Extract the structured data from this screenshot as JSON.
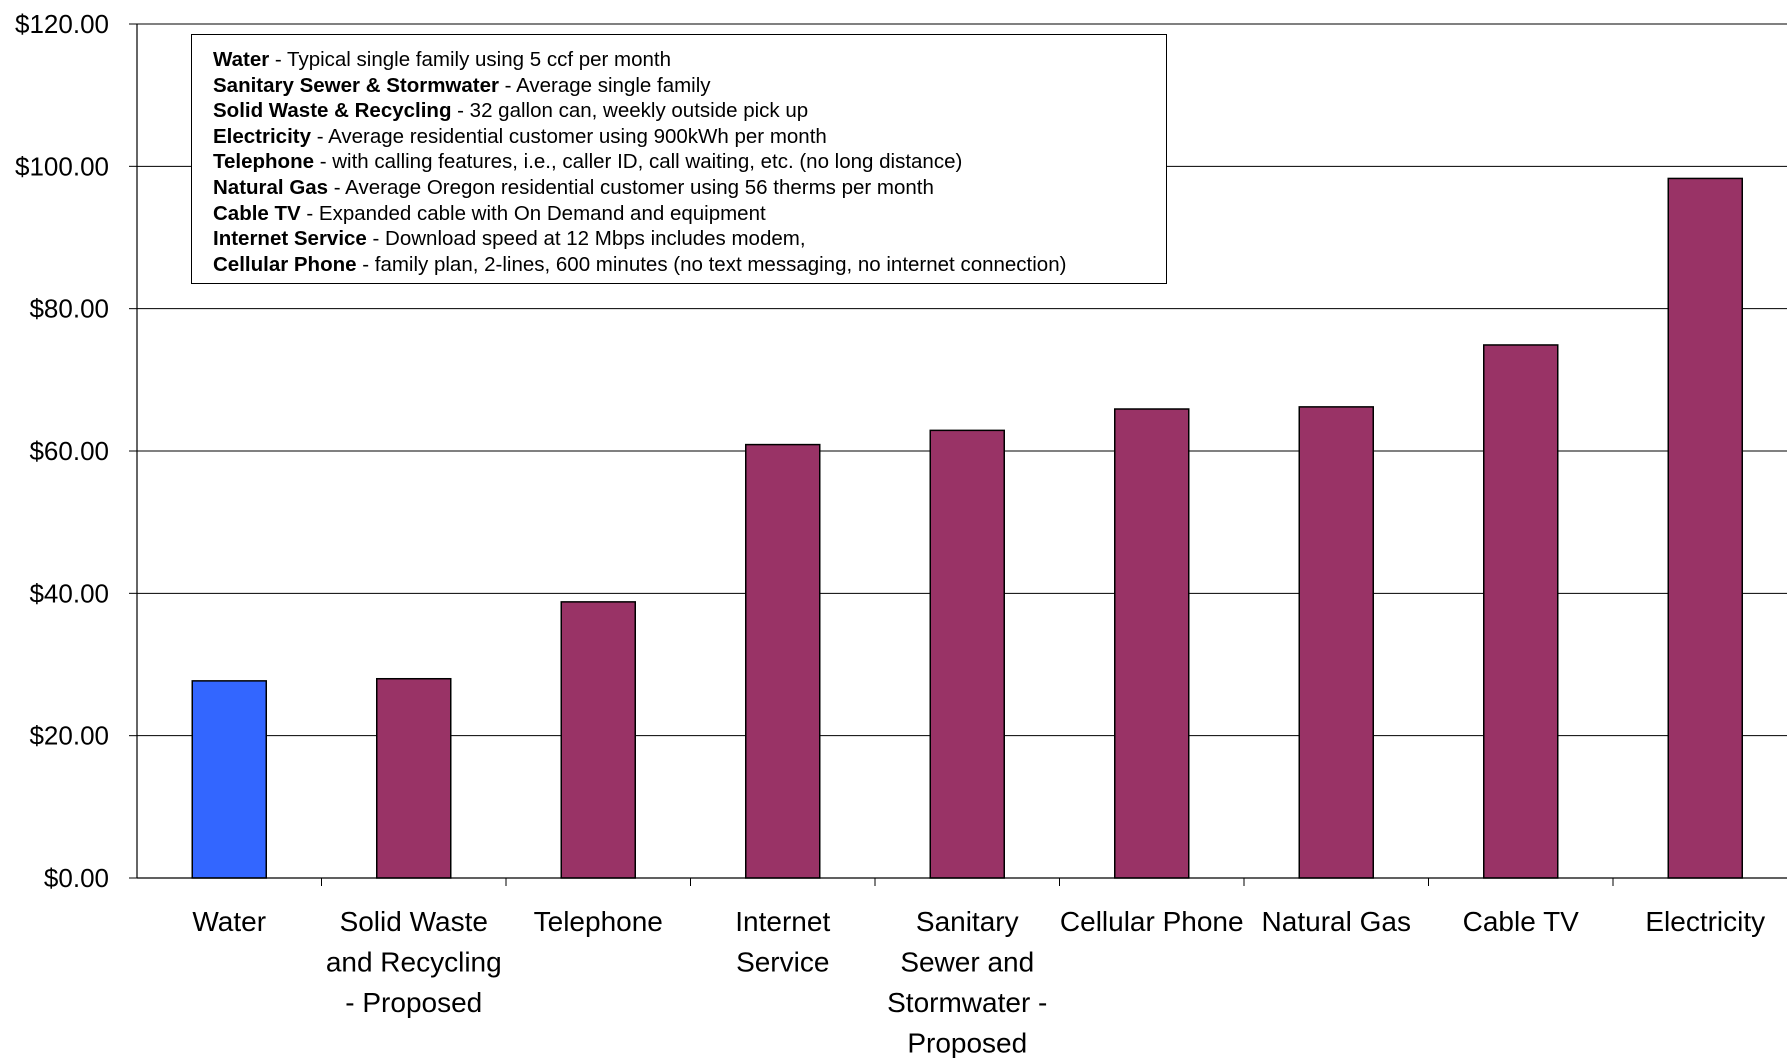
{
  "chart_data": {
    "type": "bar",
    "categories": [
      "Water",
      "Solid Waste and Recycling - Proposed",
      "Telephone",
      "Internet Service",
      "Sanitary Sewer and Stormwater - Proposed",
      "Cellular Phone",
      "Natural Gas",
      "Cable TV",
      "Electricity"
    ],
    "category_lines": [
      [
        "Water"
      ],
      [
        "Solid Waste",
        "and Recycling",
        "- Proposed"
      ],
      [
        "Telephone"
      ],
      [
        "Internet",
        "Service"
      ],
      [
        "Sanitary",
        "Sewer and",
        "Stormwater -",
        "Proposed"
      ],
      [
        "Cellular Phone"
      ],
      [
        "Natural Gas"
      ],
      [
        "Cable TV"
      ],
      [
        "Electricity"
      ]
    ],
    "values": [
      27.7,
      28.0,
      38.8,
      60.9,
      62.9,
      65.9,
      66.2,
      74.9,
      98.3
    ],
    "bar_colors": [
      "#3366FF",
      "#993366",
      "#993366",
      "#993366",
      "#993366",
      "#993366",
      "#993366",
      "#993366",
      "#993366"
    ],
    "ylim": [
      0,
      120
    ],
    "yticks": [
      "$0.00",
      "$20.00",
      "$40.00",
      "$60.00",
      "$80.00",
      "$100.00",
      "$120.00"
    ],
    "ytick_values": [
      0,
      20,
      40,
      60,
      80,
      100,
      120
    ],
    "grid": true,
    "title": "",
    "xlabel": "",
    "ylabel": ""
  },
  "legend_notes": [
    {
      "label": "Water",
      "text": " - Typical single family using 5 ccf per month"
    },
    {
      "label": "Sanitary Sewer & Stormwater",
      "text": " - Average single family"
    },
    {
      "label": "Solid Waste & Recycling",
      "text": " - 32 gallon can, weekly outside pick up"
    },
    {
      "label": "Electricity",
      "text": " - Average residential customer using 900kWh per month"
    },
    {
      "label": "Telephone",
      "text": " - with calling features, i.e., caller ID, call waiting, etc. (no long distance)"
    },
    {
      "label": "Natural Gas",
      "text": " - Average Oregon residential customer using 56 therms per month"
    },
    {
      "label": "Cable TV",
      "text": " - Expanded cable with On Demand and equipment"
    },
    {
      "label": "Internet Service",
      "text": " - Download speed at 12 Mbps includes modem,"
    },
    {
      "label": "Cellular Phone",
      "text": " - family plan, 2-lines, 600 minutes (no text messaging, no internet connection)"
    }
  ],
  "colors": {
    "axis": "#000000",
    "gridline": "#000000"
  }
}
